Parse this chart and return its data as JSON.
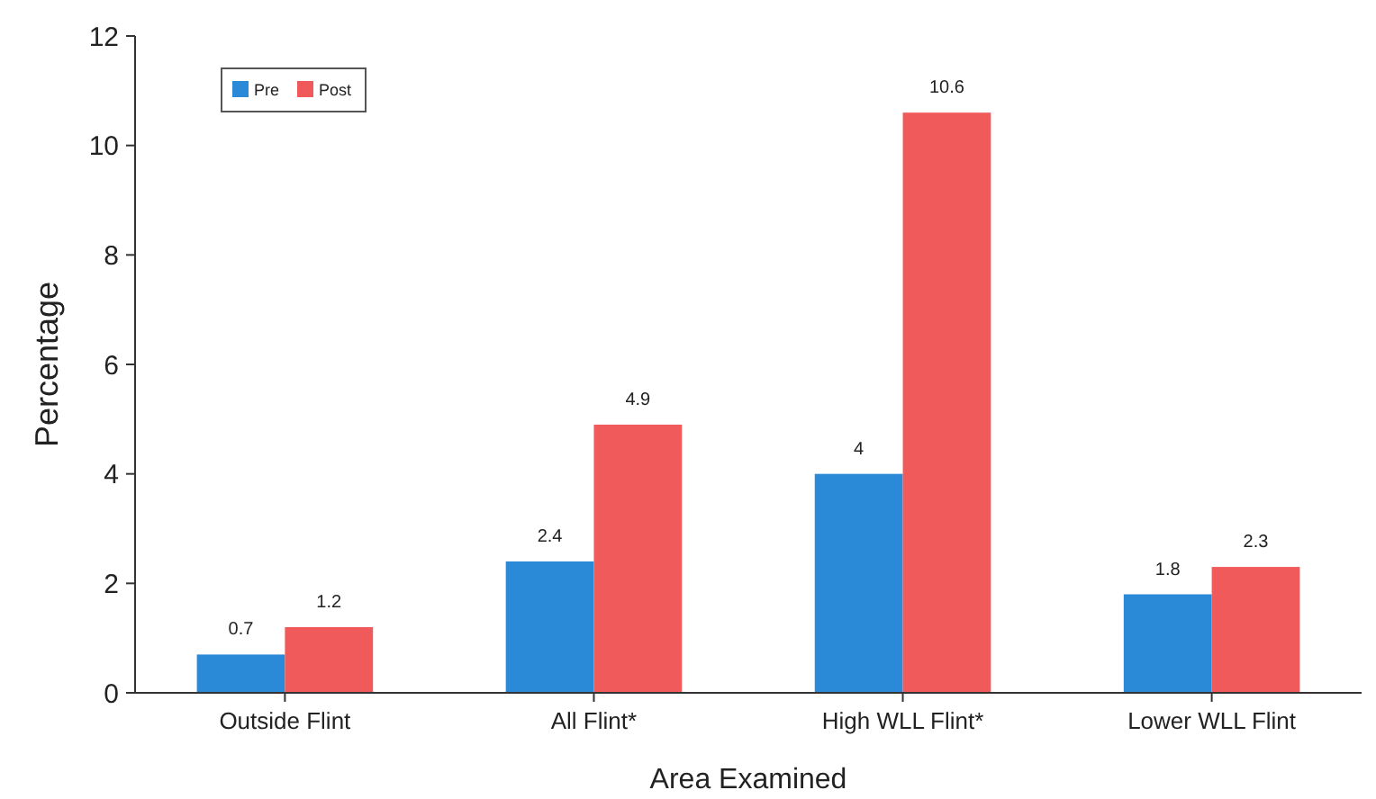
{
  "chart_data": {
    "type": "bar",
    "xlabel": "Area Examined",
    "ylabel": "Percentage",
    "categories": [
      "Outside Flint",
      "All Flint*",
      "High WLL Flint*",
      "Lower WLL Flint"
    ],
    "series": [
      {
        "name": "Pre",
        "color": "#2b8ad8",
        "values": [
          0.7,
          2.4,
          4,
          1.8
        ]
      },
      {
        "name": "Post",
        "color": "#f15a5a",
        "values": [
          1.2,
          4.9,
          10.6,
          2.3
        ]
      }
    ],
    "ylim": [
      0,
      12
    ],
    "yticks": [
      0,
      2,
      4,
      6,
      8,
      10,
      12
    ],
    "grid": false,
    "legend": "top left",
    "data_labels": true
  }
}
